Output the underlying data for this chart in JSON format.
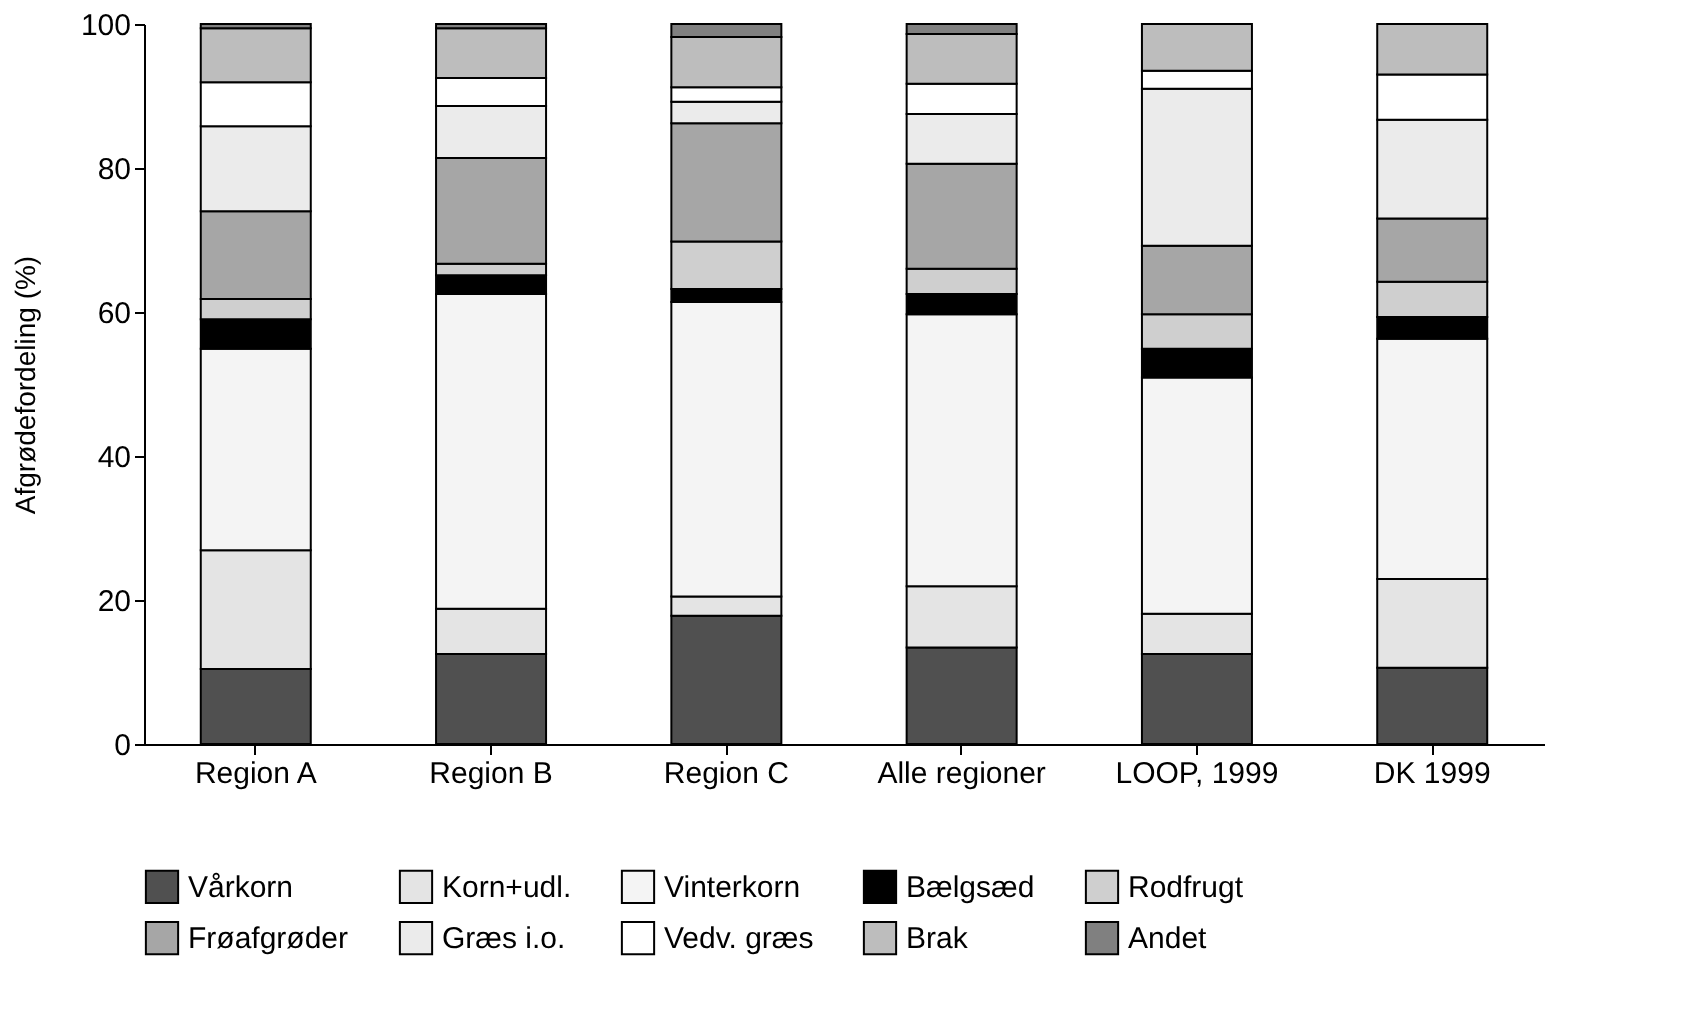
{
  "chart_data": {
    "type": "bar",
    "stacked": true,
    "ylabel": "Afgrødefordeling (%)",
    "categories": [
      "Region A",
      "Region B",
      "Region C",
      "Alle regioner",
      "LOOP, 1999",
      "DK 1999"
    ],
    "ylim": [
      0,
      100
    ],
    "yticks": [
      0,
      20,
      40,
      60,
      80,
      100
    ],
    "grid": false,
    "legend": "bottom",
    "series": [
      {
        "name": "Vårkorn",
        "color": "#505050",
        "values": [
          10.4,
          12.5,
          17.8,
          13.4,
          12.5,
          10.6
        ]
      },
      {
        "name": "Korn+udl.",
        "color": "#e4e4e4",
        "values": [
          16.5,
          6.3,
          2.7,
          8.5,
          5.6,
          12.3
        ]
      },
      {
        "name": "Vinterkorn",
        "color": "#f4f4f4",
        "values": [
          28.0,
          43.7,
          40.9,
          37.8,
          32.8,
          33.4
        ]
      },
      {
        "name": "Bælgsæd",
        "color": "#000000",
        "values": [
          4.1,
          2.6,
          1.8,
          2.8,
          4.0,
          3.0
        ]
      },
      {
        "name": "Rodfrugt",
        "color": "#cfcfcf",
        "values": [
          2.8,
          1.6,
          6.6,
          3.5,
          4.8,
          4.9
        ]
      },
      {
        "name": "Frøafgrøder",
        "color": "#a6a6a6",
        "values": [
          12.2,
          14.7,
          16.4,
          14.6,
          9.5,
          8.8
        ]
      },
      {
        "name": "Græs i.o.",
        "color": "#ebebeb",
        "values": [
          11.8,
          7.2,
          3.0,
          6.9,
          21.8,
          13.7
        ]
      },
      {
        "name": "Vedv. græs",
        "color": "#ffffff",
        "values": [
          6.1,
          3.9,
          2.0,
          4.2,
          2.5,
          6.3
        ]
      },
      {
        "name": "Brak",
        "color": "#bdbdbd",
        "values": [
          7.5,
          6.9,
          7.0,
          6.9,
          6.5,
          7.0
        ]
      },
      {
        "name": "Andet",
        "color": "#808080",
        "values": [
          0.6,
          0.6,
          1.8,
          1.4,
          null,
          null
        ]
      }
    ]
  }
}
